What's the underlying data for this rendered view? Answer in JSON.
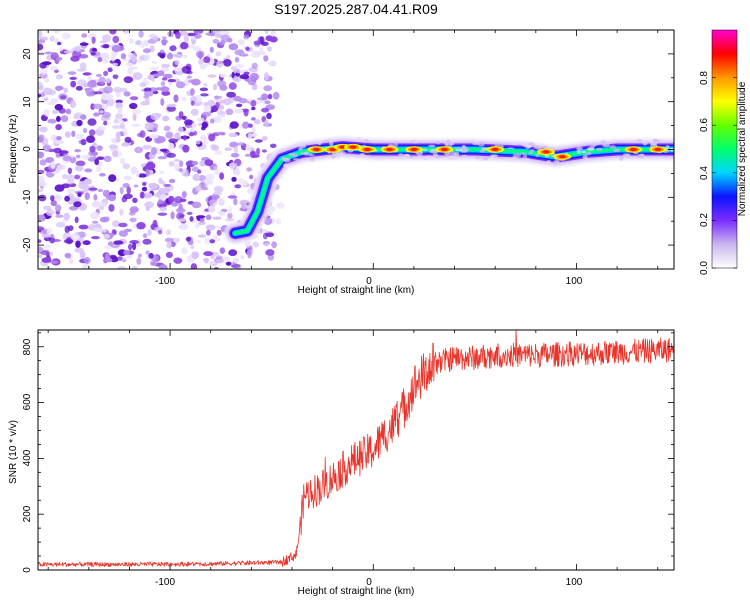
{
  "title": "S197.2025.287.04.41.R09",
  "colors": {
    "snr_line": "#e8342a",
    "speckle": [
      "#5b10c9",
      "#8a3fe0",
      "#b58cf0",
      "#d8c4f7",
      "#ece2fb"
    ],
    "colormap": [
      "#ffffff",
      "#c9b6ee",
      "#7b2cff",
      "#0a14ff",
      "#00d5ff",
      "#00ff6a",
      "#66ff00",
      "#ffff00",
      "#ff9900",
      "#ff0000",
      "#ff00d0"
    ]
  },
  "chart_data": [
    {
      "type": "heatmap",
      "name": "spectrogram",
      "xlabel": "Height of straight line (km)",
      "ylabel": "Frequency (Hz)",
      "xlim": [
        -165,
        148
      ],
      "ylim": [
        -25,
        25
      ],
      "x_ticks": [
        "-100",
        "0",
        "100"
      ],
      "y_ticks": [
        "20",
        "10",
        "0",
        "-10",
        "-20"
      ],
      "colorbar": {
        "label": "Normalized spectral amplitude",
        "range": [
          0,
          1
        ],
        "ticks": [
          "0.0",
          "0.2",
          "0.4",
          "0.6",
          "0.8"
        ]
      },
      "noise_region_km": [
        -165,
        -52
      ],
      "signal_track": {
        "x": [
          -68,
          -62,
          -57,
          -52,
          -45,
          -35,
          -25,
          -15,
          0,
          20,
          50,
          75,
          90,
          105,
          120,
          148
        ],
        "y": [
          -17.5,
          -17.0,
          -13.0,
          -6.0,
          -2.0,
          -0.5,
          0.0,
          0.5,
          0.0,
          0.0,
          0.0,
          -0.5,
          -1.5,
          -0.5,
          0.0,
          0.0
        ]
      },
      "hot_spots": {
        "x": [
          -28,
          -20,
          -15,
          -10,
          -3,
          8,
          20,
          35,
          60,
          85,
          93,
          128,
          140
        ],
        "y": [
          0,
          0,
          0.5,
          0.5,
          0,
          0,
          0,
          0,
          0,
          -0.5,
          -1.5,
          0,
          0
        ]
      }
    },
    {
      "type": "line",
      "name": "snr",
      "xlabel": "Height of straight line (km)",
      "ylabel": "SNR (10 * v/v)",
      "xlim": [
        -165,
        148
      ],
      "ylim": [
        0,
        860
      ],
      "x_ticks": [
        "-100",
        "0",
        "100"
      ],
      "y_ticks": [
        "0",
        "200",
        "400",
        "600",
        "800"
      ],
      "series": [
        {
          "name": "SNR",
          "x": [
            -165,
            -120,
            -80,
            -45,
            -38,
            -36,
            -34,
            -30,
            -25,
            -20,
            -15,
            -10,
            -5,
            0,
            5,
            10,
            15,
            20,
            25,
            30,
            40,
            50,
            60,
            80,
            100,
            120,
            135,
            148
          ],
          "y": [
            20,
            20,
            22,
            28,
            55,
            150,
            270,
            280,
            300,
            330,
            360,
            390,
            410,
            430,
            480,
            520,
            580,
            660,
            700,
            740,
            760,
            760,
            770,
            770,
            775,
            780,
            785,
            790
          ]
        }
      ]
    }
  ]
}
